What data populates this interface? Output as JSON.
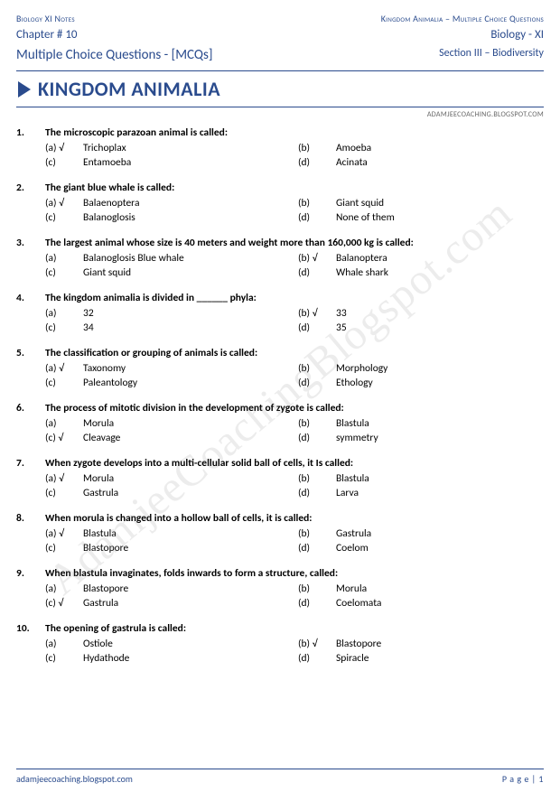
{
  "header": {
    "top_left": "Biology XI Notes",
    "top_right": "Kingdom Animalia – Multiple Choice Questions",
    "chapter": "Chapter # 10",
    "mcq_label": "Multiple Choice Questions - [MCQs]",
    "subject": "Biology - XI",
    "section": "Section III – Biodiversity",
    "title": "KINGDOM ANIMALIA",
    "credit": "ADAMJEECOACHING.BLOGSPOT.COM"
  },
  "watermark": "AdamjeeCoachingBlogspot.com",
  "footer": {
    "url": "adamjeecoaching.blogspot.com",
    "page": "P a g e  | 1"
  },
  "questions": [
    {
      "n": "1.",
      "q": "The microscopic parazoan animal is called:",
      "opts": [
        {
          "l": "(a) √",
          "t": "Trichoplax"
        },
        {
          "l": "(b)",
          "t": "Amoeba"
        },
        {
          "l": "(c)",
          "t": "Entamoeba"
        },
        {
          "l": "(d)",
          "t": "Acinata"
        }
      ]
    },
    {
      "n": "2.",
      "q": "The giant blue whale is called:",
      "opts": [
        {
          "l": "(a) √",
          "t": "Balaenoptera"
        },
        {
          "l": "(b)",
          "t": "Giant squid"
        },
        {
          "l": "(c)",
          "t": "Balanoglosis"
        },
        {
          "l": "(d)",
          "t": "None of them"
        }
      ]
    },
    {
      "n": "3.",
      "q": "The largest animal whose size is 40 meters and weight more than 160,000 kg is called:",
      "opts": [
        {
          "l": "(a)",
          "t": "Balanoglosis Blue whale"
        },
        {
          "l": "(b) √",
          "t": "Balanoptera"
        },
        {
          "l": "(c)",
          "t": "Giant squid"
        },
        {
          "l": "(d)",
          "t": "Whale shark"
        }
      ]
    },
    {
      "n": "4.",
      "q": "The kingdom animalia is divided in ______ phyla:",
      "opts": [
        {
          "l": "(a)",
          "t": "32"
        },
        {
          "l": "(b) √",
          "t": "33"
        },
        {
          "l": "(c)",
          "t": "34"
        },
        {
          "l": "(d)",
          "t": "35"
        }
      ]
    },
    {
      "n": "5.",
      "q": "The classification or grouping of animals is called:",
      "opts": [
        {
          "l": "(a) √",
          "t": "Taxonomy"
        },
        {
          "l": "(b)",
          "t": "Morphology"
        },
        {
          "l": "(c)",
          "t": "Paleantology"
        },
        {
          "l": "(d)",
          "t": "Ethology"
        }
      ]
    },
    {
      "n": "6.",
      "q": "The process of mitotic division in the development of zygote is called:",
      "opts": [
        {
          "l": "(a)",
          "t": "Morula"
        },
        {
          "l": "(b)",
          "t": "Blastula"
        },
        {
          "l": "(c) √",
          "t": "Cleavage"
        },
        {
          "l": "(d)",
          "t": "symmetry"
        }
      ]
    },
    {
      "n": "7.",
      "q": "When zygote develops into a multi-cellular solid ball of cells, it Is called:",
      "opts": [
        {
          "l": "(a) √",
          "t": "Morula"
        },
        {
          "l": "(b)",
          "t": "Blastula"
        },
        {
          "l": "(c)",
          "t": "Gastrula"
        },
        {
          "l": "(d)",
          "t": "Larva"
        }
      ]
    },
    {
      "n": "8.",
      "q": "When morula is changed into a hollow ball of cells, it is called:",
      "opts": [
        {
          "l": "(a) √",
          "t": "Blastula"
        },
        {
          "l": "(b)",
          "t": "Gastrula"
        },
        {
          "l": "(c)",
          "t": "Blastopore"
        },
        {
          "l": "(d)",
          "t": "Coelom"
        }
      ]
    },
    {
      "n": "9.",
      "q": "When blastula invaginates, folds inwards to form a structure, called:",
      "opts": [
        {
          "l": "(a)",
          "t": "Blastopore"
        },
        {
          "l": "(b)",
          "t": "Morula"
        },
        {
          "l": "(c) √",
          "t": "Gastrula"
        },
        {
          "l": "(d)",
          "t": "Coelomata"
        }
      ]
    },
    {
      "n": "10.",
      "q": "The opening of gastrula is called:",
      "opts": [
        {
          "l": "(a)",
          "t": "Ostiole"
        },
        {
          "l": "(b) √",
          "t": "Blastopore"
        },
        {
          "l": "(c)",
          "t": "Hydathode"
        },
        {
          "l": "(d)",
          "t": "Spiracle"
        }
      ]
    }
  ]
}
